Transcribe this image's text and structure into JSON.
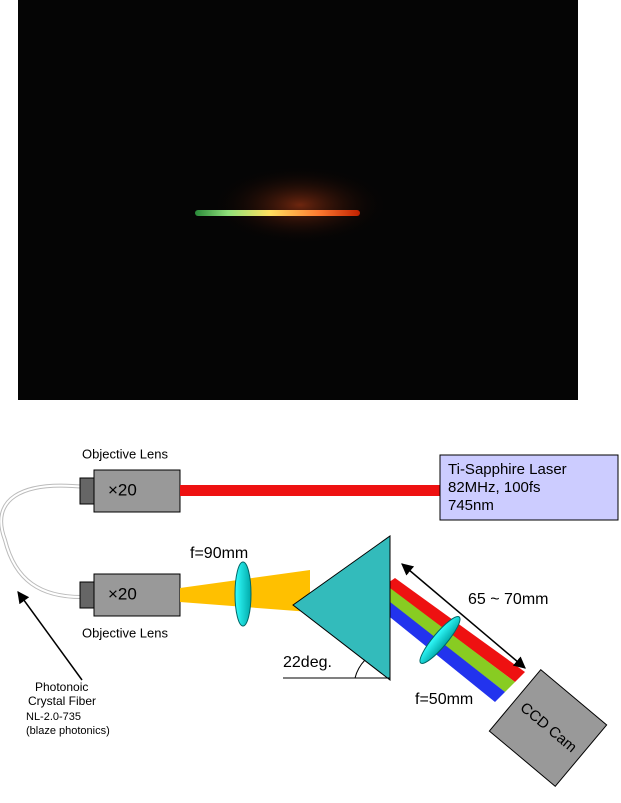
{
  "labels": {
    "objective_top": "Objective Lens",
    "mag_top": "×20",
    "laser": [
      "Ti-Sapphire Laser",
      "82MHz, 100fs",
      "745nm"
    ],
    "mag_bottom": "×20",
    "objective_bottom": "Objective Lens",
    "lens1": "f=90mm",
    "distance": "65 ~ 70mm",
    "angle": "22deg.",
    "lens2": "f=50mm",
    "camera": "CCD Cam",
    "fiber": [
      "Photonoic",
      "Crystal Fiber",
      "NL-2.0-735",
      "(blaze photonics)"
    ]
  }
}
